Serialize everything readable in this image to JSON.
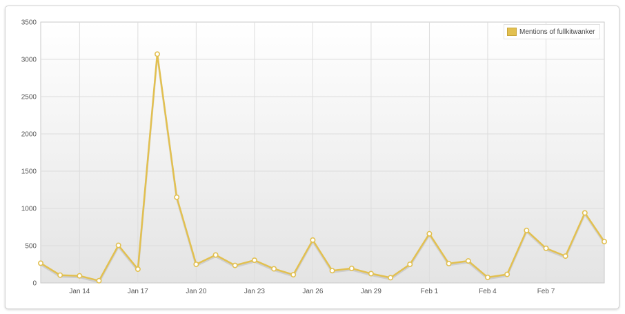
{
  "chart_data": {
    "type": "line",
    "ylim": [
      0,
      3500
    ],
    "yticks": [
      "0",
      "500",
      "1000",
      "1500",
      "2000",
      "2500",
      "3000",
      "3500"
    ],
    "xticks": [
      {
        "label": "Jan 14",
        "x": "2014-01-14"
      },
      {
        "label": "Jan 17",
        "x": "2014-01-17"
      },
      {
        "label": "Jan 20",
        "x": "2014-01-20"
      },
      {
        "label": "Jan 23",
        "x": "2014-01-23"
      },
      {
        "label": "Jan 26",
        "x": "2014-01-26"
      },
      {
        "label": "Jan 29",
        "x": "2014-01-29"
      },
      {
        "label": "Feb 1",
        "x": "2014-02-01"
      },
      {
        "label": "Feb 4",
        "x": "2014-02-04"
      },
      {
        "label": "Feb 7",
        "x": "2014-02-07"
      }
    ],
    "xlim": [
      "2014-01-12",
      "2014-02-10"
    ],
    "x": [
      "2014-01-12",
      "2014-01-13",
      "2014-01-14",
      "2014-01-15",
      "2014-01-16",
      "2014-01-17",
      "2014-01-18",
      "2014-01-19",
      "2014-01-20",
      "2014-01-21",
      "2014-01-22",
      "2014-01-23",
      "2014-01-24",
      "2014-01-25",
      "2014-01-26",
      "2014-01-27",
      "2014-01-28",
      "2014-01-29",
      "2014-01-30",
      "2014-01-31",
      "2014-02-01",
      "2014-02-02",
      "2014-02-03",
      "2014-02-04",
      "2014-02-05",
      "2014-02-06",
      "2014-02-07",
      "2014-02-08",
      "2014-02-09",
      "2014-02-10"
    ],
    "series": [
      {
        "name": "Mentions of fullkitwanker",
        "color": "#e2c050",
        "values": [
          265,
          105,
          95,
          30,
          505,
          185,
          3070,
          1150,
          250,
          375,
          235,
          305,
          190,
          110,
          575,
          165,
          195,
          125,
          70,
          250,
          660,
          260,
          295,
          75,
          115,
          705,
          465,
          360,
          940,
          555
        ]
      }
    ],
    "grid": true,
    "legend_position": "top-right",
    "title": "",
    "xlabel": "",
    "ylabel": ""
  },
  "legend": {
    "label": "Mentions of fullkitwanker",
    "swatch_color": "#e2c050"
  }
}
